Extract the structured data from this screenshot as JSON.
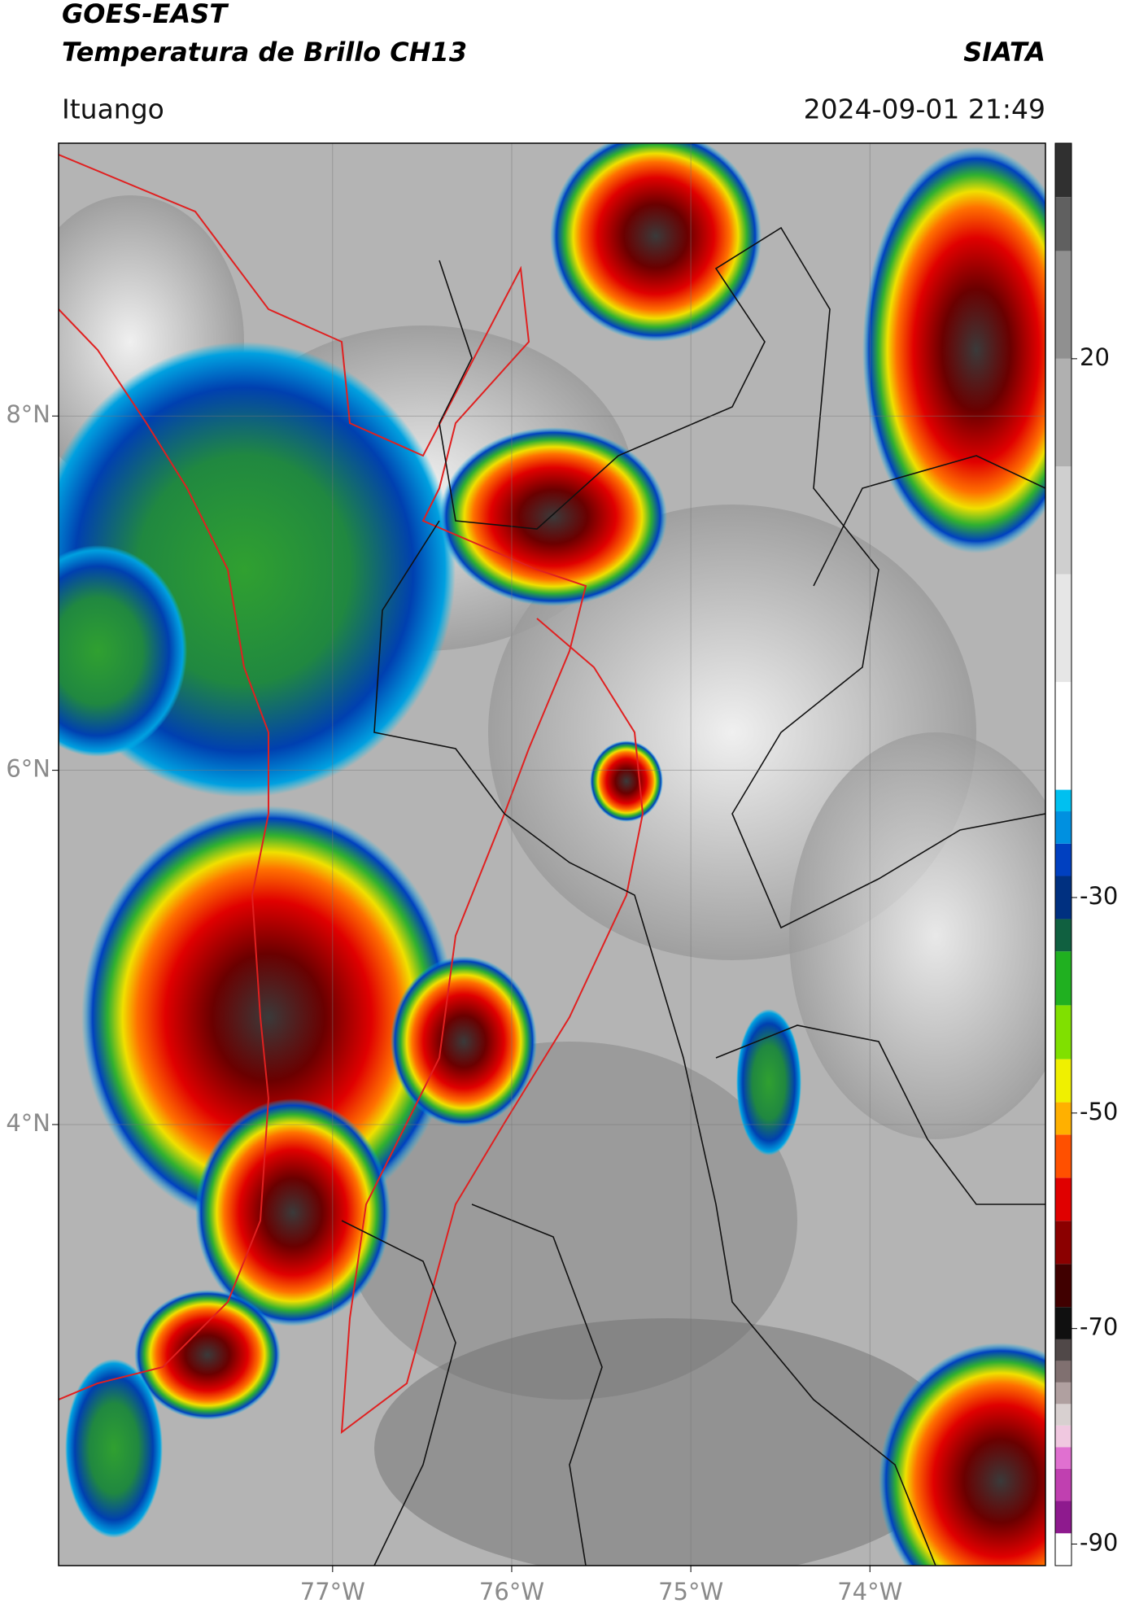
{
  "header": {
    "satellite": "GOES-EAST",
    "product": "Temperatura de Brillo CH13",
    "institution": "SIATA",
    "location": "Ituango",
    "datetime": "2024-09-01 21:49"
  },
  "map": {
    "lonlim": [
      -78.53,
      -73.02
    ],
    "latlim": [
      1.51,
      9.54
    ],
    "lonticks": [
      {
        "value": -77,
        "label": "77°W"
      },
      {
        "value": -76,
        "label": "76°W"
      },
      {
        "value": -75,
        "label": "75°W"
      },
      {
        "value": -74,
        "label": "74°W"
      }
    ],
    "latticks": [
      {
        "value": 4,
        "label": "4°N"
      },
      {
        "value": 6,
        "label": "6°N"
      },
      {
        "value": 8,
        "label": "8°N"
      }
    ],
    "grid": true
  },
  "colorbar": {
    "clim": [
      -92,
      40
    ],
    "ticks": [
      -90,
      -70,
      -50,
      -30,
      20
    ],
    "colormap": [
      {
        "value": -92,
        "color": "#ffffff"
      },
      {
        "value": -89,
        "color": "#8e1a8e"
      },
      {
        "value": -86,
        "color": "#c040b0"
      },
      {
        "value": -83,
        "color": "#e070d0"
      },
      {
        "value": -81,
        "color": "#f0c8e0"
      },
      {
        "value": -79,
        "color": "#d8d0d0"
      },
      {
        "value": -77,
        "color": "#b0a0a0"
      },
      {
        "value": -75,
        "color": "#807070"
      },
      {
        "value": -73,
        "color": "#504848"
      },
      {
        "value": -71,
        "color": "#101010"
      },
      {
        "value": -68,
        "color": "#400000"
      },
      {
        "value": -64,
        "color": "#8b0000"
      },
      {
        "value": -60,
        "color": "#e00000"
      },
      {
        "value": -56,
        "color": "#ff5000"
      },
      {
        "value": -52,
        "color": "#ffb000"
      },
      {
        "value": -49,
        "color": "#f0f000"
      },
      {
        "value": -45,
        "color": "#80e000"
      },
      {
        "value": -40,
        "color": "#20b020"
      },
      {
        "value": -35,
        "color": "#106040"
      },
      {
        "value": -32,
        "color": "#003080"
      },
      {
        "value": -28,
        "color": "#0040c0"
      },
      {
        "value": -25,
        "color": "#0090e0"
      },
      {
        "value": -22,
        "color": "#00c0f0"
      },
      {
        "value": -20,
        "color": "#ffffff"
      },
      {
        "value": -10,
        "color": "#e6e6e6"
      },
      {
        "value": 0,
        "color": "#cfcfcf"
      },
      {
        "value": 10,
        "color": "#b0b0b0"
      },
      {
        "value": 20,
        "color": "#909090"
      },
      {
        "value": 30,
        "color": "#606060"
      },
      {
        "value": 35,
        "color": "#303030"
      }
    ]
  }
}
